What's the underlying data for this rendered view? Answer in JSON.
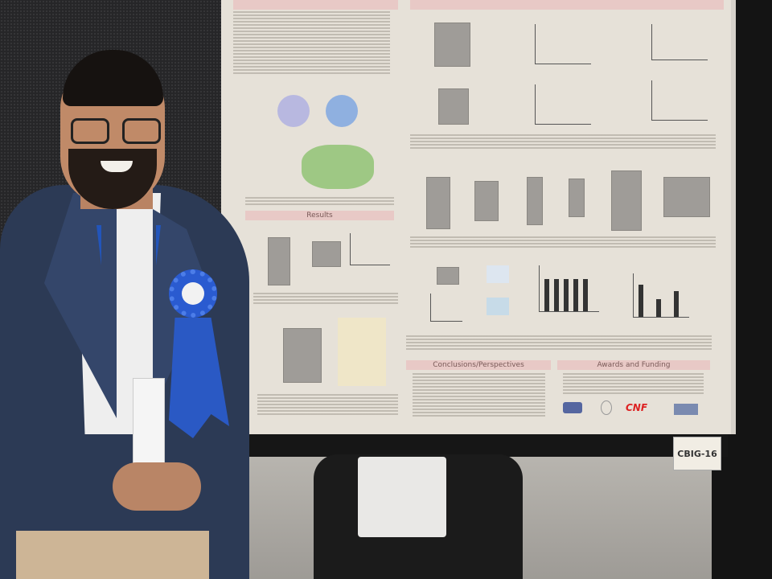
{
  "poster": {
    "sections": {
      "results": "Results",
      "conclusions": "Conclusions/Perspectives",
      "awards": "Awards and Funding"
    },
    "logo_text": "CNF"
  },
  "board_label": "CBIG-16",
  "colors": {
    "poster_header": "#e8c9c6",
    "ribbon": "#2a5bd0",
    "blazer": "#2c3a55"
  }
}
